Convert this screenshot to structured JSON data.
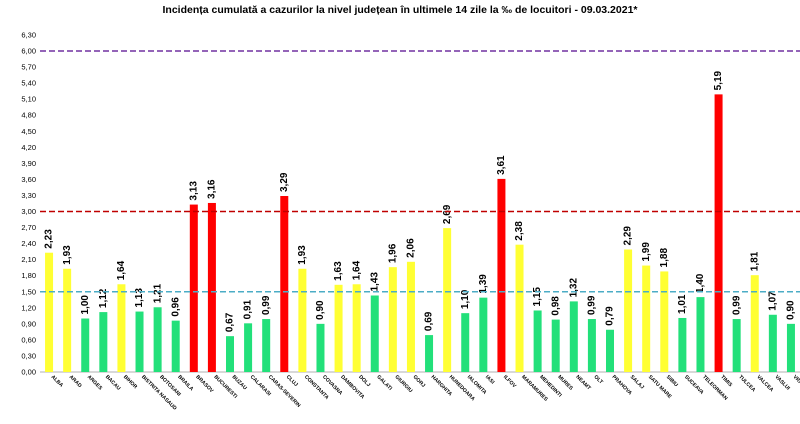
{
  "chart_data": {
    "type": "bar",
    "title": "Incidența cumulată a cazurilor la nivel județean în ultimele 14 zile la ‰ de locuitori - 09.03.2021*",
    "xlabel": "",
    "ylabel": "",
    "ylim": [
      0,
      6.3
    ],
    "yticks": [
      "0,00",
      "0,30",
      "0,60",
      "0,90",
      "1,20",
      "1,50",
      "1,80",
      "2,10",
      "2,40",
      "2,70",
      "3,00",
      "3,30",
      "3,60",
      "3,90",
      "4,20",
      "4,50",
      "4,80",
      "5,10",
      "5,40",
      "5,70",
      "6,00",
      "6,30"
    ],
    "thresholds": [
      {
        "value": 1.5,
        "color": "#4bacc6"
      },
      {
        "value": 3.0,
        "color": "#c00000"
      },
      {
        "value": 6.0,
        "color": "#7030a0"
      }
    ],
    "categories": [
      "ALBA",
      "ARAD",
      "ARGES",
      "BACAU",
      "BIHOR",
      "BISTRITA NASAUD",
      "BOTOSANI",
      "BRAILA",
      "BRASOV",
      "BUCURESTI",
      "BUZAU",
      "CALARASI",
      "CARAS-SEVERIN",
      "CLUJ",
      "CONSTANTA",
      "COVASNA",
      "DAMBOVITA",
      "DOLJ",
      "GALATI",
      "GIURGIU",
      "GORJ",
      "HARGHITA",
      "HUNEDOARA",
      "IALOMITA",
      "IASI",
      "ILFOV",
      "MARAMURES",
      "MEHEDINTI",
      "MURES",
      "NEAMT",
      "OLT",
      "PRAHOVA",
      "SALAJ",
      "SATU MARE",
      "SIBIU",
      "SUCEAVA",
      "TELEORMAN",
      "TIMIS",
      "TULCEA",
      "VALCEA",
      "VASLUI",
      "VRANCEA"
    ],
    "values": [
      2.23,
      1.93,
      1.0,
      1.12,
      1.64,
      1.13,
      1.21,
      0.96,
      3.13,
      3.16,
      0.67,
      0.91,
      0.99,
      3.29,
      1.93,
      0.9,
      1.63,
      1.64,
      1.43,
      1.96,
      2.06,
      0.69,
      2.69,
      1.1,
      1.39,
      3.61,
      2.38,
      1.15,
      0.98,
      1.32,
      0.99,
      0.79,
      2.29,
      1.99,
      1.88,
      1.01,
      1.4,
      5.19,
      0.99,
      1.81,
      1.07,
      0.9
    ],
    "value_labels": [
      "2,23",
      "1,93",
      "1,00",
      "1,12",
      "1,64",
      "1,13",
      "1,21",
      "0,96",
      "3,13",
      "3,16",
      "0,67",
      "0,91",
      "0,99",
      "3,29",
      "1,93",
      "0,90",
      "1,63",
      "1,64",
      "1,43",
      "1,96",
      "2,06",
      "0,69",
      "2,69",
      "1,10",
      "1,39",
      "3,61",
      "2,38",
      "1,15",
      "0,98",
      "1,32",
      "0,99",
      "0,79",
      "2,29",
      "1,99",
      "1,88",
      "1,01",
      "1,40",
      "5,19",
      "0,99",
      "1,81",
      "1,07",
      "0,90"
    ],
    "colors": {
      "green": "#22e07a",
      "yellow": "#ffff33",
      "red": "#ff0000"
    }
  }
}
